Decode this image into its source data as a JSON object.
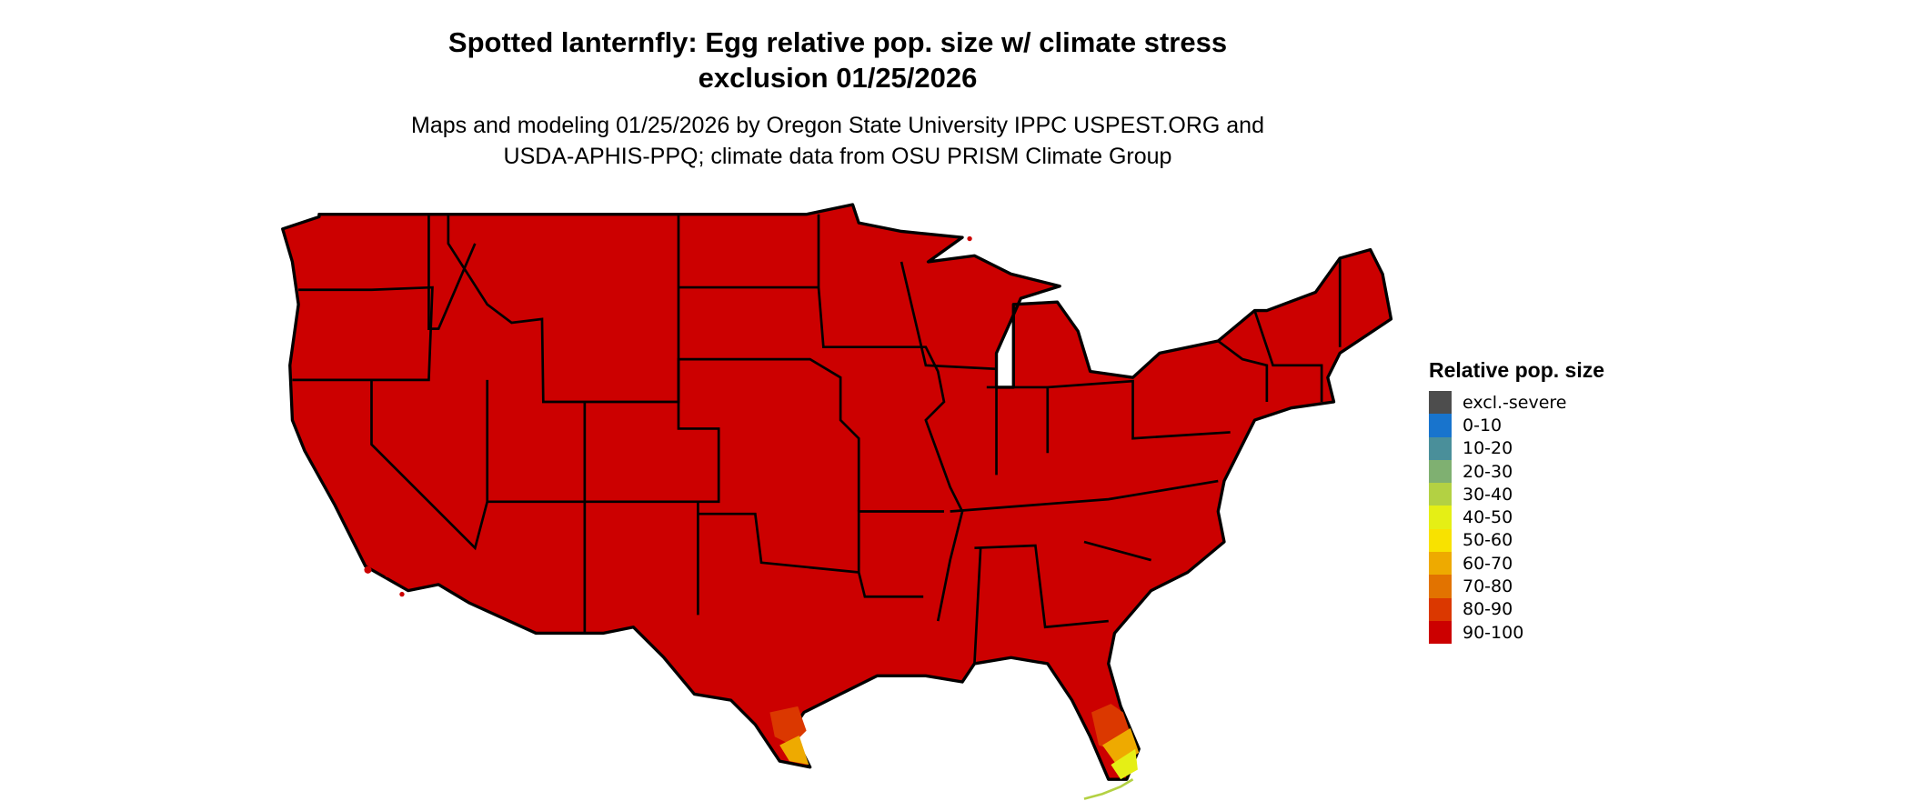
{
  "title": {
    "line1": "Spotted lanternfly: Egg relative pop. size w/ climate stress",
    "line2": "exclusion 01/25/2026"
  },
  "subtitle": {
    "line1": "Maps and modeling 01/25/2026 by Oregon State University IPPC USPEST.ORG and",
    "line2": "USDA-APHIS-PPQ; climate data from OSU PRISM Climate Group"
  },
  "map": {
    "region": "Contiguous United States",
    "dominant_class": "90-100",
    "lower_classes_regions": [
      "South Florida (80-90 to 30-40)",
      "South Texas tip (80-90 to 60-70)"
    ]
  },
  "legend": {
    "title": "Relative pop. size",
    "items": [
      {
        "label": "excl.-severe",
        "color": "#4d4d4d"
      },
      {
        "label": "0-10",
        "color": "#1874cd"
      },
      {
        "label": "10-20",
        "color": "#4a8f9a"
      },
      {
        "label": "20-30",
        "color": "#7fb071"
      },
      {
        "label": "30-40",
        "color": "#b3d143"
      },
      {
        "label": "40-50",
        "color": "#e5ef15"
      },
      {
        "label": "50-60",
        "color": "#f8e200"
      },
      {
        "label": "60-70",
        "color": "#eeaa00"
      },
      {
        "label": "70-80",
        "color": "#e27300"
      },
      {
        "label": "80-90",
        "color": "#db3800"
      },
      {
        "label": "90-100",
        "color": "#cc0000"
      }
    ]
  }
}
